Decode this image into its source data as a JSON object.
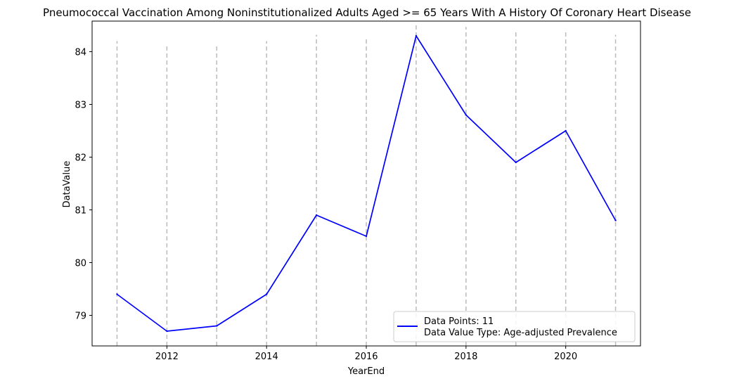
{
  "chart_data": {
    "type": "line",
    "title": "Pneumococcal Vaccination Among Noninstitutionalized Adults Aged >= 65 Years With A History Of Coronary Heart Disease",
    "xlabel": "YearEnd",
    "ylabel": "DataValue",
    "x": [
      2011,
      2012,
      2013,
      2014,
      2015,
      2016,
      2017,
      2018,
      2019,
      2020,
      2021
    ],
    "series": [
      {
        "name": "Data Points: 11",
        "values": [
          79.4,
          78.7,
          78.8,
          79.4,
          80.9,
          80.5,
          84.3,
          82.8,
          81.9,
          82.5,
          80.8
        ],
        "color": "#0000ff"
      }
    ],
    "vlines": {
      "x": [
        2011,
        2012,
        2013,
        2014,
        2015,
        2016,
        2017,
        2018,
        2019,
        2020,
        2021
      ],
      "top": [
        84.2,
        84.15,
        84.15,
        84.2,
        84.32,
        84.27,
        84.55,
        84.47,
        84.41,
        84.4,
        84.32
      ],
      "color": "#bbbbbb",
      "style": "dashed"
    },
    "xticks": [
      2012,
      2014,
      2016,
      2018,
      2020
    ],
    "xtick_labels": [
      "2012",
      "2014",
      "2016",
      "2018",
      "2020"
    ],
    "yticks": [
      79,
      80,
      81,
      82,
      83,
      84
    ],
    "ytick_labels": [
      "79",
      "80",
      "81",
      "82",
      "83",
      "84"
    ],
    "xlim": [
      2010.5,
      2021.5
    ],
    "ylim": [
      78.42,
      84.58
    ],
    "grid": false,
    "legend": {
      "placement": "lower-right",
      "lines": [
        "Data Points: 11",
        "Data Value Type: Age-adjusted Prevalence"
      ]
    }
  }
}
